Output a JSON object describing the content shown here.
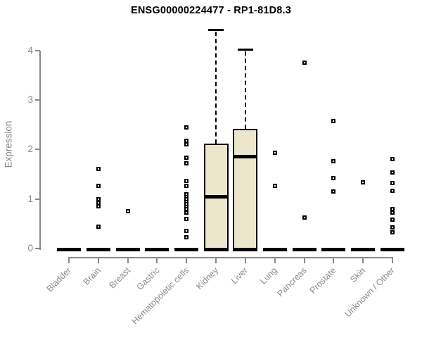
{
  "chart_data": {
    "type": "boxplot",
    "title": "ENSG00000224477 - RP1-81D8.3",
    "ylabel": "Expression",
    "xlabel": "",
    "ylim": [
      0,
      4
    ],
    "yticks": [
      0,
      1,
      2,
      3,
      4
    ],
    "grid": false,
    "legend": "none",
    "categories": [
      "Bladder",
      "Brain",
      "Breast",
      "Gastric",
      "Hematopoietic cells",
      "Kidney",
      "Liver",
      "Lung",
      "Pancreas",
      "Prostate",
      "Skin",
      "Unknown / Other"
    ],
    "series": [
      {
        "category": "Bladder",
        "q1": 0,
        "median": 0,
        "q3": 0,
        "whisker_low": 0,
        "whisker_high": 0,
        "outliers": []
      },
      {
        "category": "Brain",
        "q1": 0,
        "median": 0,
        "q3": 0,
        "whisker_low": 0,
        "whisker_high": 0,
        "outliers": [
          1.61,
          1.26,
          0.99,
          0.93,
          0.86,
          0.44
        ]
      },
      {
        "category": "Breast",
        "q1": 0,
        "median": 0,
        "q3": 0,
        "whisker_low": 0,
        "whisker_high": 0,
        "outliers": [
          0.76
        ]
      },
      {
        "category": "Gastric",
        "q1": 0,
        "median": 0,
        "q3": 0,
        "whisker_low": 0,
        "whisker_high": 0,
        "outliers": []
      },
      {
        "category": "Hematopoietic cells",
        "q1": 0,
        "median": 0,
        "q3": 0,
        "whisker_low": 0,
        "whisker_high": 0,
        "outliers": [
          2.45,
          2.17,
          2.1,
          1.84,
          1.72,
          1.37,
          1.26,
          1.1,
          1.04,
          0.99,
          0.94,
          0.89,
          0.84,
          0.79,
          0.73,
          0.6,
          0.36,
          0.23
        ]
      },
      {
        "category": "Kidney",
        "q1": 0,
        "median": 1.05,
        "q3": 2.12,
        "whisker_low": 0,
        "whisker_high": 4.42,
        "outliers": []
      },
      {
        "category": "Liver",
        "q1": 0,
        "median": 1.86,
        "q3": 2.42,
        "whisker_low": 0,
        "whisker_high": 4.02,
        "outliers": []
      },
      {
        "category": "Lung",
        "q1": 0,
        "median": 0,
        "q3": 0,
        "whisker_low": 0,
        "whisker_high": 0,
        "outliers": [
          1.94,
          1.27
        ]
      },
      {
        "category": "Pancreas",
        "q1": 0,
        "median": 0,
        "q3": 0,
        "whisker_low": 0,
        "whisker_high": 0,
        "outliers": [
          3.76,
          0.62
        ]
      },
      {
        "category": "Prostate",
        "q1": 0,
        "median": 0,
        "q3": 0,
        "whisker_low": 0,
        "whisker_high": 0,
        "outliers": [
          2.57,
          1.76,
          1.42,
          1.15
        ]
      },
      {
        "category": "Skin",
        "q1": 0,
        "median": 0,
        "q3": 0,
        "whisker_low": 0,
        "whisker_high": 0,
        "outliers": [
          1.34
        ]
      },
      {
        "category": "Unknown / Other",
        "q1": 0,
        "median": 0,
        "q3": 0,
        "whisker_low": 0,
        "whisker_high": 0,
        "outliers": [
          1.81,
          1.54,
          1.33,
          1.17,
          0.8,
          0.73,
          0.59,
          0.43,
          0.33
        ]
      }
    ],
    "colors": {
      "box_fill": "#ece6cd",
      "box_border": "#000000",
      "median": "#000000",
      "axis": "#8a8a8a",
      "tick_label": "#8a8a8a",
      "title": "#000000",
      "background": "#ffffff"
    }
  }
}
